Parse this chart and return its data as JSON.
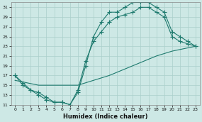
{
  "xlabel": "Humidex (Indice chaleur)",
  "bg_color": "#cde8e5",
  "grid_color": "#aacfcb",
  "line_color": "#1e7a6e",
  "xlim": [
    -0.5,
    23.5
  ],
  "ylim": [
    11,
    32
  ],
  "xticks": [
    0,
    1,
    2,
    3,
    4,
    5,
    6,
    7,
    8,
    9,
    10,
    11,
    12,
    13,
    14,
    15,
    16,
    17,
    18,
    19,
    20,
    21,
    22,
    23
  ],
  "yticks": [
    11,
    13,
    15,
    17,
    19,
    21,
    23,
    25,
    27,
    29,
    31
  ],
  "line1_x": [
    0,
    1,
    2,
    3,
    4,
    5,
    6,
    7,
    8,
    9,
    10,
    11,
    12,
    13,
    14,
    15,
    16,
    17,
    18,
    19,
    20,
    21,
    22,
    23
  ],
  "line1_y": [
    17,
    15.5,
    14,
    13.5,
    12.5,
    11.5,
    11.5,
    11,
    13.5,
    19,
    25,
    28,
    30,
    30,
    31,
    32,
    32,
    32,
    31,
    30,
    26,
    25,
    24,
    23
  ],
  "line2_x": [
    0,
    1,
    2,
    3,
    4,
    5,
    6,
    7,
    8,
    9,
    10,
    11,
    12,
    13,
    14,
    15,
    16,
    17,
    18,
    19,
    20,
    21,
    22,
    23
  ],
  "line2_y": [
    17,
    15,
    14,
    13,
    12,
    11.5,
    11.5,
    11,
    14,
    20,
    24,
    26,
    28,
    29,
    29.5,
    30,
    31,
    31,
    30,
    29,
    25,
    24,
    23.5,
    23
  ],
  "line3_x": [
    0,
    3,
    8,
    12,
    15,
    18,
    20,
    23
  ],
  "line3_y": [
    16,
    15,
    15,
    17,
    19,
    21,
    22,
    23
  ],
  "xlabel_fontsize": 6,
  "tick_fontsize": 4.5,
  "linewidth": 0.8,
  "markersize": 2.2
}
